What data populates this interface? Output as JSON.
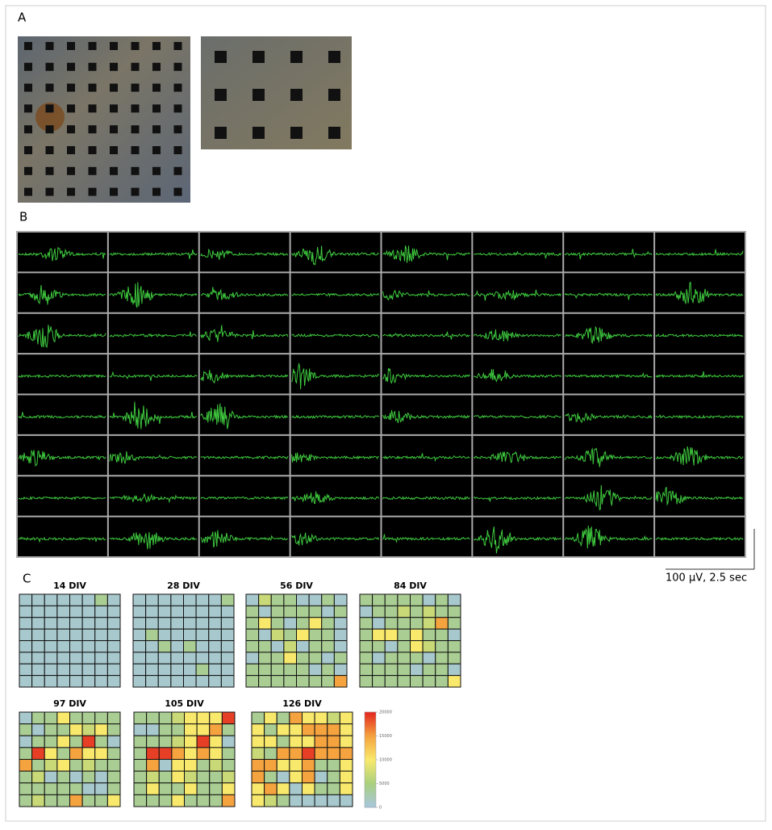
{
  "panel_labels": [
    "A",
    "B",
    "C"
  ],
  "scale_bar": "100 µV, 2.5 sec",
  "colorbar": {
    "ticks": [
      0,
      5000,
      10000,
      15000,
      20000
    ],
    "colors": [
      "#a7c6e0",
      "#a9cf7f",
      "#f8e96c",
      "#f5a33f",
      "#e3261f"
    ]
  },
  "heatmaps": [
    {
      "title": "14 DIV",
      "values": [
        [
          1000,
          1000,
          1000,
          1000,
          1000,
          1000,
          4000,
          1000
        ],
        [
          1000,
          1000,
          1000,
          1000,
          1000,
          1000,
          1000,
          1000
        ],
        [
          1000,
          1000,
          1000,
          1000,
          1000,
          1000,
          1000,
          1000
        ],
        [
          1000,
          1000,
          1000,
          1000,
          1000,
          1000,
          1000,
          1000
        ],
        [
          1000,
          1000,
          1000,
          1000,
          1000,
          1000,
          1000,
          1000
        ],
        [
          1000,
          1000,
          1000,
          1000,
          1000,
          1000,
          1000,
          1000
        ],
        [
          1000,
          1000,
          1000,
          1000,
          1000,
          1000,
          1000,
          1000
        ],
        [
          1000,
          1000,
          1000,
          1000,
          1000,
          1000,
          1000,
          1000
        ]
      ]
    },
    {
      "title": "28 DIV",
      "values": [
        [
          1000,
          1000,
          1000,
          1000,
          1000,
          1000,
          1000,
          4000
        ],
        [
          1000,
          1000,
          1000,
          1000,
          1000,
          1000,
          1000,
          1000
        ],
        [
          1000,
          1000,
          1000,
          1000,
          1000,
          1000,
          1000,
          1000
        ],
        [
          1000,
          4000,
          1000,
          1000,
          1000,
          1000,
          1000,
          1000
        ],
        [
          1000,
          1000,
          4000,
          1000,
          4000,
          1000,
          1000,
          1000
        ],
        [
          1000,
          1000,
          1000,
          1000,
          1000,
          1000,
          1000,
          1000
        ],
        [
          1000,
          1000,
          1000,
          1000,
          1000,
          4000,
          1000,
          1000
        ],
        [
          1000,
          1000,
          1000,
          1000,
          1000,
          1000,
          1000,
          1000
        ]
      ]
    },
    {
      "title": "56 DIV",
      "values": [
        [
          1000,
          7000,
          4000,
          4000,
          1000,
          1000,
          4000,
          1000
        ],
        [
          4000,
          1000,
          4000,
          4000,
          4000,
          4000,
          1000,
          4000
        ],
        [
          4000,
          10000,
          4000,
          1000,
          4000,
          10000,
          4000,
          1000
        ],
        [
          4000,
          1000,
          7000,
          4000,
          10000,
          4000,
          4000,
          1000
        ],
        [
          4000,
          4000,
          1000,
          7000,
          1000,
          4000,
          4000,
          1000
        ],
        [
          1000,
          4000,
          4000,
          10000,
          4000,
          4000,
          1000,
          4000
        ],
        [
          4000,
          4000,
          4000,
          4000,
          4000,
          1000,
          4000,
          1000
        ],
        [
          4000,
          4000,
          4000,
          4000,
          4000,
          4000,
          4000,
          15000
        ]
      ]
    },
    {
      "title": "84 DIV",
      "values": [
        [
          4000,
          4000,
          4000,
          4000,
          4000,
          1000,
          4000,
          1000
        ],
        [
          1000,
          4000,
          4000,
          7000,
          4000,
          7000,
          4000,
          4000
        ],
        [
          4000,
          1000,
          4000,
          4000,
          4000,
          7000,
          15000,
          4000
        ],
        [
          4000,
          10000,
          10000,
          4000,
          10000,
          4000,
          4000,
          1000
        ],
        [
          4000,
          4000,
          1000,
          4000,
          10000,
          7000,
          4000,
          4000
        ],
        [
          4000,
          1000,
          4000,
          4000,
          4000,
          1000,
          4000,
          4000
        ],
        [
          4000,
          4000,
          4000,
          4000,
          1000,
          4000,
          4000,
          1000
        ],
        [
          4000,
          4000,
          4000,
          4000,
          4000,
          4000,
          4000,
          10000
        ]
      ]
    },
    {
      "title": "97 DIV",
      "values": [
        [
          1000,
          4000,
          4000,
          10000,
          4000,
          4000,
          4000,
          4000
        ],
        [
          4000,
          1000,
          4000,
          4000,
          10000,
          7000,
          10000,
          4000
        ],
        [
          1000,
          4000,
          4000,
          10000,
          4000,
          19000,
          4000,
          1000
        ],
        [
          4000,
          19000,
          10000,
          4000,
          15000,
          10000,
          10000,
          4000
        ],
        [
          15000,
          4000,
          7000,
          10000,
          4000,
          7000,
          4000,
          4000
        ],
        [
          4000,
          7000,
          1000,
          4000,
          1000,
          4000,
          1000,
          4000
        ],
        [
          4000,
          4000,
          4000,
          4000,
          4000,
          1000,
          1000,
          4000
        ],
        [
          4000,
          7000,
          4000,
          4000,
          15000,
          4000,
          4000,
          10000
        ]
      ]
    },
    {
      "title": "105 DIV",
      "values": [
        [
          4000,
          4000,
          4000,
          7000,
          10000,
          10000,
          10000,
          19000
        ],
        [
          1000,
          1000,
          4000,
          4000,
          10000,
          10000,
          15000,
          4000
        ],
        [
          4000,
          4000,
          4000,
          7000,
          10000,
          19000,
          10000,
          1000
        ],
        [
          4000,
          19000,
          19000,
          15000,
          10000,
          15000,
          10000,
          4000
        ],
        [
          4000,
          15000,
          1000,
          10000,
          10000,
          4000,
          7000,
          4000
        ],
        [
          4000,
          7000,
          4000,
          10000,
          7000,
          4000,
          4000,
          7000
        ],
        [
          4000,
          10000,
          4000,
          4000,
          10000,
          4000,
          4000,
          10000
        ],
        [
          4000,
          4000,
          4000,
          10000,
          4000,
          4000,
          4000,
          15000
        ]
      ]
    },
    {
      "title": "126 DIV",
      "values": [
        [
          4000,
          10000,
          4000,
          15000,
          10000,
          10000,
          7000,
          10000
        ],
        [
          10000,
          4000,
          10000,
          10000,
          15000,
          15000,
          15000,
          10000
        ],
        [
          10000,
          10000,
          4000,
          10000,
          10000,
          15000,
          15000,
          10000
        ],
        [
          7000,
          4000,
          15000,
          15000,
          19000,
          15000,
          15000,
          15000
        ],
        [
          15000,
          15000,
          10000,
          10000,
          15000,
          4000,
          4000,
          10000
        ],
        [
          15000,
          4000,
          1000,
          10000,
          15000,
          1000,
          4000,
          10000
        ],
        [
          10000,
          15000,
          10000,
          1000,
          10000,
          4000,
          4000,
          10000
        ],
        [
          10000,
          7000,
          4000,
          1000,
          1000,
          1000,
          1000,
          1000
        ]
      ]
    }
  ]
}
